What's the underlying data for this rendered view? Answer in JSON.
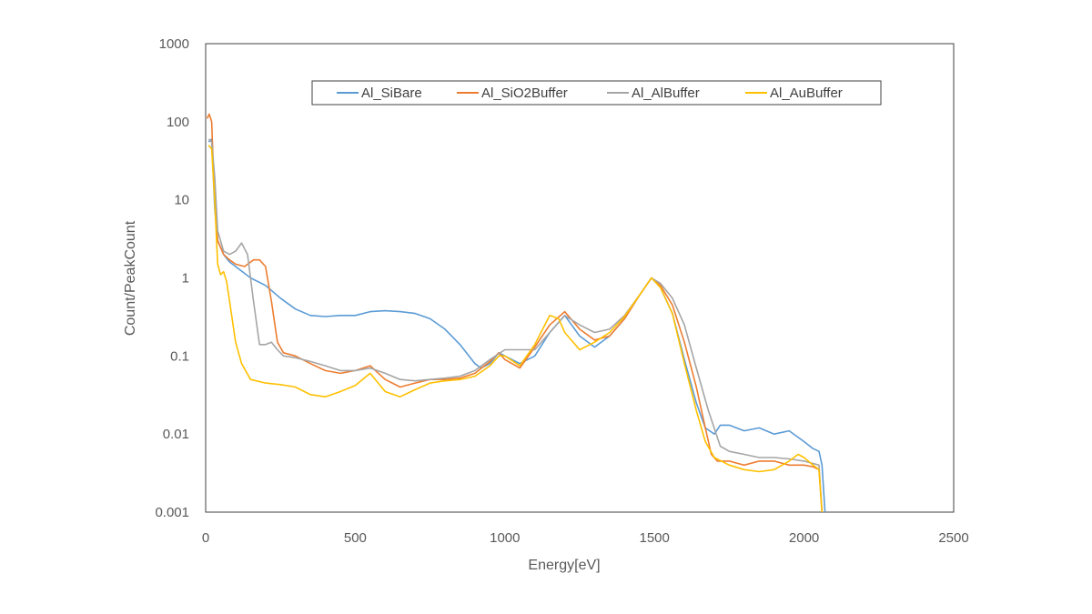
{
  "chart_data": {
    "type": "line",
    "title": "",
    "xlabel": "Energy[eV]",
    "ylabel": "Count/PeakCount",
    "xlim": [
      0,
      2500
    ],
    "ylim": [
      0.001,
      1000
    ],
    "yscale": "log",
    "x_ticks": [
      0,
      500,
      1000,
      1500,
      2000,
      2500
    ],
    "x_tick_labels": [
      "0",
      "500",
      "1000",
      "1500",
      "2000",
      "2500"
    ],
    "y_ticks": [
      0.001,
      0.01,
      0.1,
      1,
      10,
      100,
      1000
    ],
    "y_tick_labels": [
      "0.001",
      "0.01",
      "0.1",
      "1",
      "10",
      "100",
      "1000"
    ],
    "grid": false,
    "legend": "top-center",
    "colors": {
      "Al_SiBare": "#5B9BD5",
      "Al_SiO2Buffer": "#ED7D31",
      "Al_AlBuffer": "#A5A5A5",
      "Al_AuBuffer": "#FFC000",
      "frame": "#404040"
    },
    "series": [
      {
        "name": "Al_SiBare",
        "x": [
          10,
          20,
          30,
          40,
          60,
          80,
          100,
          150,
          200,
          250,
          300,
          350,
          400,
          450,
          500,
          550,
          600,
          650,
          700,
          750,
          800,
          850,
          900,
          920,
          950,
          980,
          1000,
          1050,
          1100,
          1150,
          1200,
          1250,
          1300,
          1350,
          1400,
          1450,
          1490,
          1520,
          1560,
          1600,
          1640,
          1670,
          1700,
          1720,
          1750,
          1800,
          1850,
          1900,
          1950,
          2000,
          2030,
          2050,
          2060,
          2070
        ],
        "y": [
          55,
          60,
          8,
          3,
          2,
          1.6,
          1.4,
          1.0,
          0.8,
          0.55,
          0.4,
          0.33,
          0.32,
          0.33,
          0.33,
          0.37,
          0.38,
          0.37,
          0.35,
          0.3,
          0.22,
          0.14,
          0.08,
          0.07,
          0.08,
          0.11,
          0.1,
          0.08,
          0.1,
          0.2,
          0.33,
          0.18,
          0.13,
          0.18,
          0.3,
          0.6,
          1,
          0.75,
          0.35,
          0.09,
          0.025,
          0.012,
          0.01,
          0.013,
          0.013,
          0.011,
          0.012,
          0.01,
          0.011,
          0.008,
          0.0065,
          0.006,
          0.004,
          0.001
        ]
      },
      {
        "name": "Al_SiO2Buffer",
        "x": [
          5,
          12,
          20,
          28,
          40,
          60,
          80,
          100,
          130,
          160,
          180,
          200,
          220,
          240,
          260,
          300,
          350,
          400,
          450,
          500,
          550,
          600,
          650,
          700,
          750,
          800,
          850,
          900,
          950,
          980,
          1000,
          1050,
          1100,
          1150,
          1200,
          1250,
          1300,
          1350,
          1400,
          1450,
          1490,
          1520,
          1560,
          1600,
          1640,
          1670,
          1690,
          1710,
          1750,
          1800,
          1850,
          1900,
          1950,
          2000,
          2030,
          2050,
          2060
        ],
        "y": [
          110,
          125,
          100,
          15,
          3,
          2,
          1.7,
          1.5,
          1.4,
          1.7,
          1.7,
          1.4,
          0.5,
          0.15,
          0.11,
          0.1,
          0.08,
          0.065,
          0.06,
          0.065,
          0.075,
          0.05,
          0.04,
          0.045,
          0.05,
          0.05,
          0.052,
          0.06,
          0.085,
          0.11,
          0.09,
          0.07,
          0.13,
          0.25,
          0.37,
          0.22,
          0.16,
          0.18,
          0.3,
          0.6,
          1,
          0.8,
          0.45,
          0.15,
          0.04,
          0.012,
          0.0055,
          0.0045,
          0.0045,
          0.004,
          0.0045,
          0.0045,
          0.004,
          0.004,
          0.0038,
          0.0035,
          0.001
        ]
      },
      {
        "name": "Al_AlBuffer",
        "x": [
          10,
          20,
          30,
          40,
          60,
          80,
          100,
          120,
          140,
          160,
          180,
          200,
          220,
          240,
          260,
          300,
          350,
          400,
          450,
          500,
          550,
          600,
          650,
          700,
          750,
          800,
          850,
          900,
          950,
          1000,
          1050,
          1100,
          1150,
          1200,
          1250,
          1300,
          1350,
          1400,
          1450,
          1490,
          1520,
          1560,
          1600,
          1640,
          1680,
          1720,
          1750,
          1800,
          1850,
          1900,
          1950,
          2000,
          2030,
          2050,
          2060
        ],
        "y": [
          60,
          55,
          20,
          4,
          2.2,
          2,
          2.2,
          2.8,
          2.0,
          0.5,
          0.14,
          0.14,
          0.15,
          0.12,
          0.1,
          0.095,
          0.085,
          0.075,
          0.065,
          0.065,
          0.07,
          0.06,
          0.05,
          0.048,
          0.05,
          0.052,
          0.055,
          0.065,
          0.09,
          0.12,
          0.12,
          0.12,
          0.2,
          0.33,
          0.25,
          0.2,
          0.22,
          0.33,
          0.6,
          1,
          0.85,
          0.55,
          0.25,
          0.07,
          0.02,
          0.007,
          0.006,
          0.0055,
          0.005,
          0.005,
          0.0048,
          0.0045,
          0.0042,
          0.004,
          0.001
        ]
      },
      {
        "name": "Al_AuBuffer",
        "x": [
          10,
          20,
          30,
          40,
          50,
          60,
          70,
          80,
          100,
          120,
          150,
          200,
          250,
          300,
          350,
          400,
          450,
          500,
          550,
          600,
          650,
          700,
          750,
          800,
          850,
          900,
          950,
          980,
          1000,
          1050,
          1100,
          1150,
          1180,
          1200,
          1250,
          1300,
          1350,
          1400,
          1450,
          1490,
          1520,
          1560,
          1600,
          1640,
          1670,
          1700,
          1750,
          1800,
          1850,
          1900,
          1950,
          1980,
          2000,
          2030,
          2050,
          2060
        ],
        "y": [
          50,
          45,
          10,
          1.5,
          1.1,
          1.2,
          0.9,
          0.5,
          0.15,
          0.08,
          0.05,
          0.045,
          0.043,
          0.04,
          0.032,
          0.03,
          0.035,
          0.042,
          0.06,
          0.035,
          0.03,
          0.037,
          0.045,
          0.048,
          0.05,
          0.055,
          0.075,
          0.1,
          0.1,
          0.075,
          0.14,
          0.33,
          0.3,
          0.2,
          0.12,
          0.15,
          0.2,
          0.32,
          0.6,
          1,
          0.75,
          0.35,
          0.08,
          0.02,
          0.008,
          0.005,
          0.004,
          0.0035,
          0.0033,
          0.0035,
          0.0045,
          0.0055,
          0.005,
          0.004,
          0.0035,
          0.001
        ]
      }
    ]
  }
}
